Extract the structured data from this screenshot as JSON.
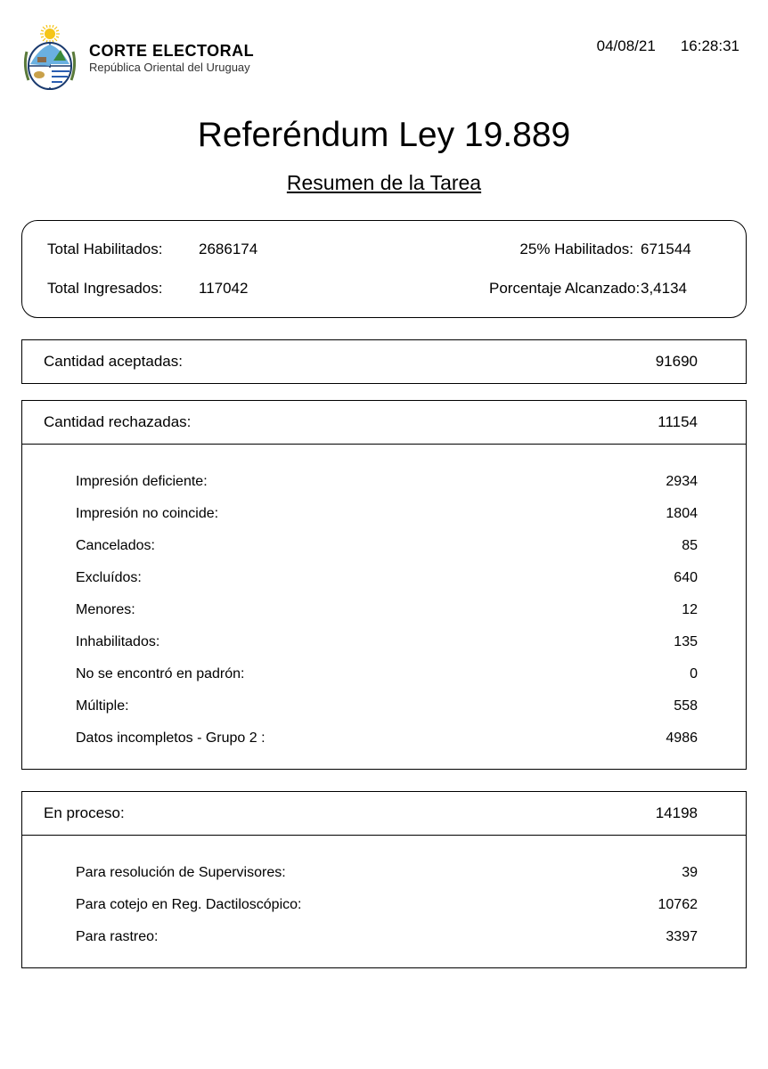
{
  "header": {
    "org_name": "CORTE ELECTORAL",
    "org_sub": "República Oriental del Uruguay",
    "date": "04/08/21",
    "time": "16:28:31",
    "coat_colors": {
      "sun": "#f5c518",
      "sky": "#6ab0e0",
      "field_stripe1": "#ffffff",
      "field_stripe2": "#2a5db0",
      "oval_border": "#1a3a6e",
      "grass": "#3a8a3a"
    }
  },
  "titles": {
    "main": "Referéndum Ley 19.889",
    "sub": "Resumen de la Tarea"
  },
  "summary": {
    "total_habilitados_label": "Total Habilitados:",
    "total_habilitados_value": "2686174",
    "pct25_label": "25% Habilitados:",
    "pct25_value": "671544",
    "total_ingresados_label": "Total Ingresados:",
    "total_ingresados_value": "117042",
    "pct_alcanzado_label": "Porcentaje Alcanzado:",
    "pct_alcanzado_value": "3,4134"
  },
  "aceptadas": {
    "label": "Cantidad aceptadas:",
    "value": "91690"
  },
  "rechazadas": {
    "label": "Cantidad rechazadas:",
    "value": "11154",
    "items": [
      {
        "label": "Impresión deficiente:",
        "value": "2934"
      },
      {
        "label": "Impresión no coincide:",
        "value": "1804"
      },
      {
        "label": "Cancelados:",
        "value": "85"
      },
      {
        "label": "Excluídos:",
        "value": "640"
      },
      {
        "label": "Menores:",
        "value": "12"
      },
      {
        "label": "Inhabilitados:",
        "value": "135"
      },
      {
        "label": "No se encontró en padrón:",
        "value": "0"
      },
      {
        "label": "Múltiple:",
        "value": "558"
      },
      {
        "label": "Datos incompletos - Grupo 2 :",
        "value": "4986"
      }
    ]
  },
  "en_proceso": {
    "label": "En proceso:",
    "value": "14198",
    "items": [
      {
        "label": "Para resolución de Supervisores:",
        "value": "39"
      },
      {
        "label": "Para cotejo en Reg. Dactiloscópico:",
        "value": "10762"
      },
      {
        "label": "Para rastreo:",
        "value": "3397"
      }
    ]
  }
}
